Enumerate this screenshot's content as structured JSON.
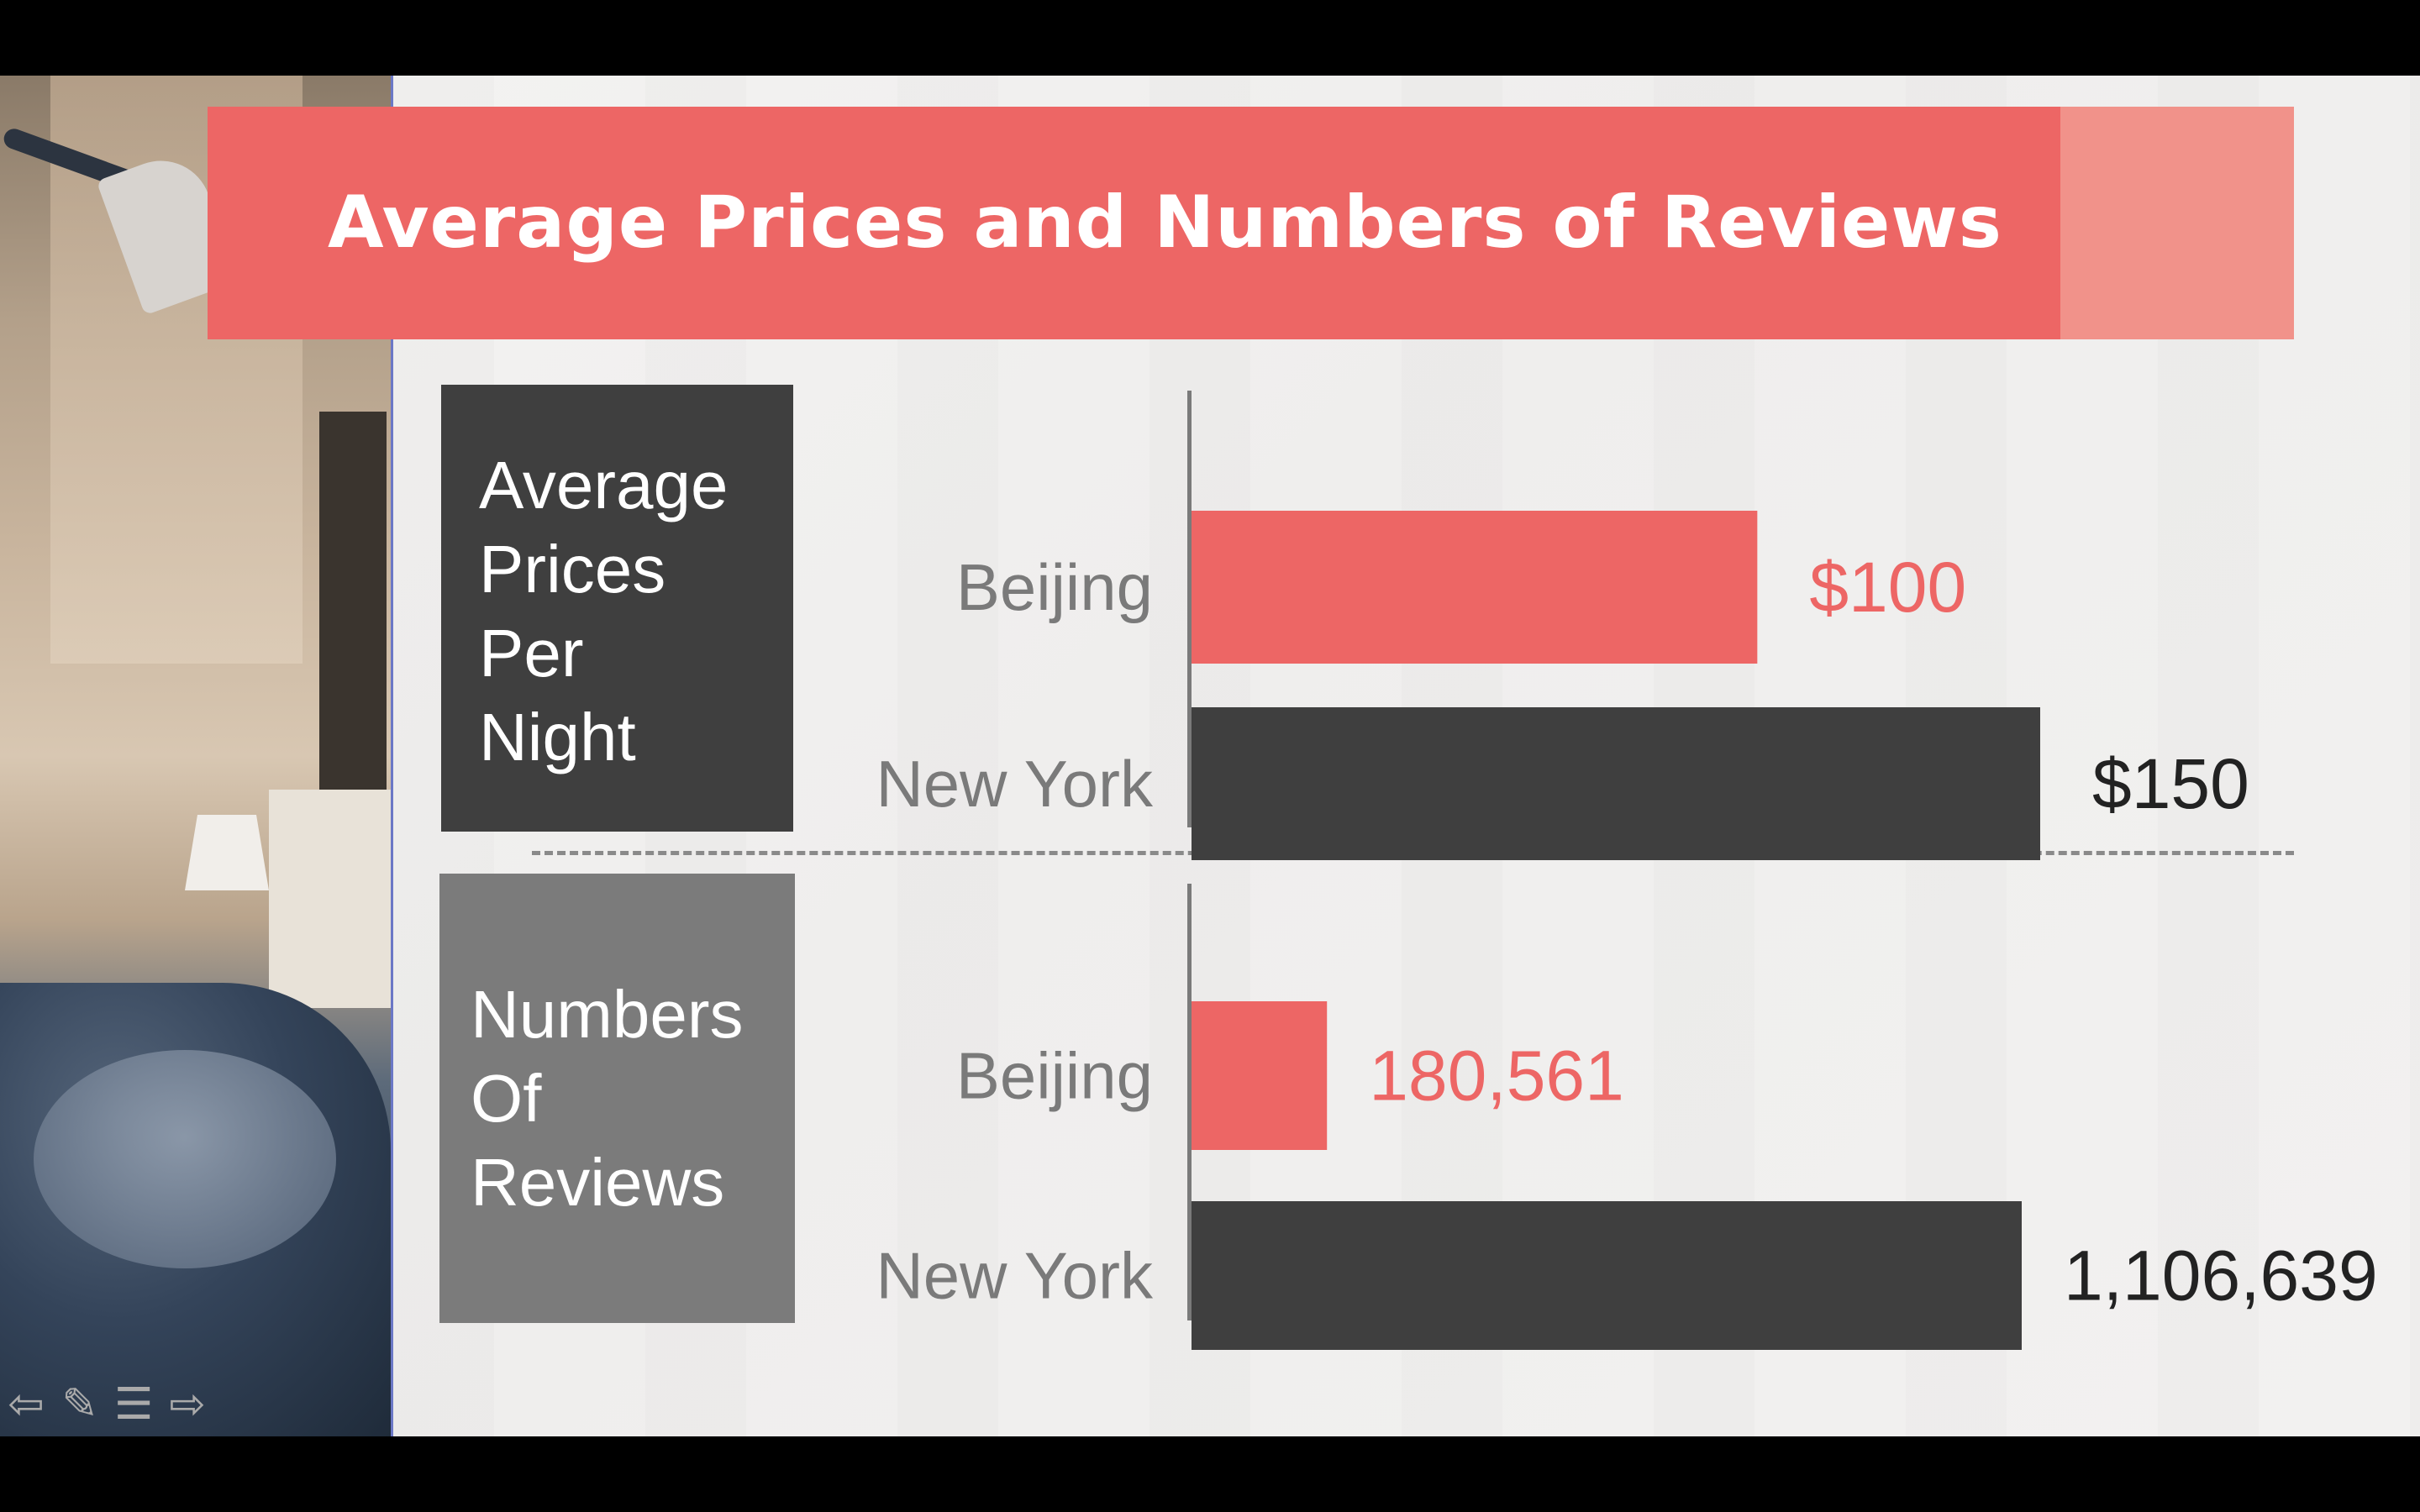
{
  "slide": {
    "title": "Average Prices and Numbers of Reviews",
    "price_section_label_lines": [
      "Average",
      "Prices",
      "Per",
      "Night"
    ],
    "review_section_label_lines": [
      "Numbers",
      "Of",
      "Reviews"
    ]
  },
  "colors": {
    "accent": "#ed6665",
    "accent_light": "#f1928a",
    "dark": "#3f3f3f",
    "gray": "#7b7b7b"
  },
  "chart_data": [
    {
      "type": "bar",
      "orientation": "horizontal",
      "categories": [
        "Beijing",
        "New York"
      ],
      "values": [
        100,
        150
      ],
      "value_labels": [
        "$100",
        "$150"
      ],
      "xlim": [
        0,
        150
      ],
      "title": "",
      "xlabel": "",
      "ylabel": ""
    },
    {
      "type": "bar",
      "orientation": "horizontal",
      "categories": [
        "Beijing",
        "New York"
      ],
      "values": [
        180561,
        1106639
      ],
      "value_labels": [
        "180,561",
        "1,106,639"
      ],
      "xlim": [
        0,
        1106639
      ],
      "title": "",
      "xlabel": "",
      "ylabel": ""
    }
  ],
  "nav": {
    "icons": [
      "back-arrow-icon",
      "pen-icon",
      "notes-icon",
      "forward-arrow-icon"
    ]
  }
}
